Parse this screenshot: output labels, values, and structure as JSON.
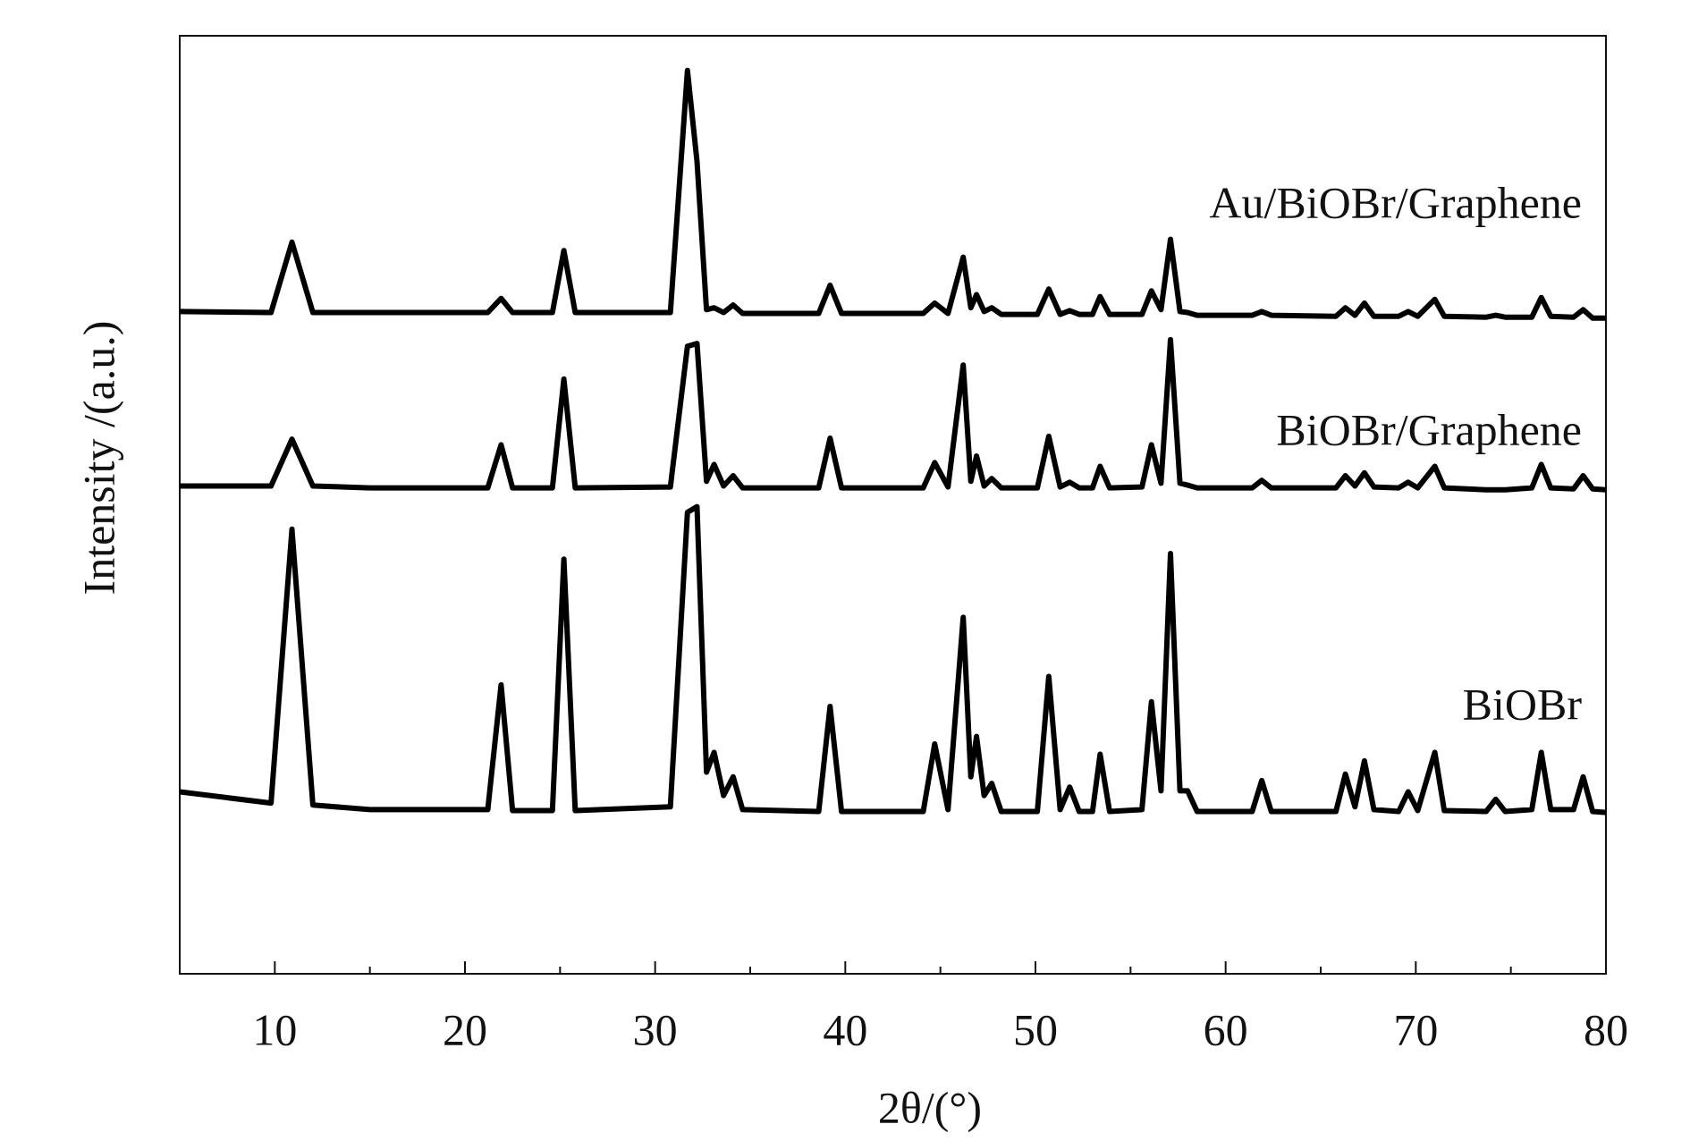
{
  "chart_data": {
    "type": "line",
    "xlabel": "2θ/(°)",
    "ylabel": "Intensity /(a.u.)",
    "xlim": [
      5,
      80
    ],
    "ylim": [
      0,
      100
    ],
    "xticks": [
      10,
      20,
      30,
      40,
      50,
      60,
      70,
      80
    ],
    "xminor": [
      15,
      25,
      35,
      45,
      55,
      65,
      75
    ],
    "x": [
      5,
      9.8,
      10.9,
      12,
      15,
      21.2,
      21.9,
      22.5,
      24.6,
      25.2,
      25.8,
      30.8,
      31.7,
      32.2,
      32.7,
      33.1,
      33.6,
      34.1,
      34.6,
      38.6,
      39.2,
      39.8,
      44.1,
      44.7,
      45.4,
      46.2,
      46.6,
      46.9,
      47.3,
      47.7,
      48.2,
      50.1,
      50.7,
      51.3,
      51.8,
      52.3,
      53.0,
      53.4,
      53.9,
      55.6,
      56.1,
      56.6,
      57.1,
      57.6,
      58.0,
      58.5,
      61.4,
      61.9,
      62.4,
      65.8,
      66.3,
      66.8,
      67.3,
      67.8,
      69.1,
      69.6,
      70.1,
      71.0,
      71.5,
      73.7,
      74.2,
      74.7,
      76.1,
      76.6,
      77.1,
      78.3,
      78.8,
      79.3,
      80
    ],
    "series": [
      {
        "name": "Au/BiOBr/Graphene",
        "color": "#000000",
        "values": [
          70.6,
          70.5,
          78.0,
          70.5,
          70.5,
          70.5,
          72.0,
          70.5,
          70.5,
          77.1,
          70.5,
          70.5,
          96.3,
          86.6,
          70.8,
          71.0,
          70.5,
          71.3,
          70.4,
          70.4,
          73.4,
          70.4,
          70.4,
          71.5,
          70.4,
          76.4,
          71.0,
          72.4,
          70.6,
          71.0,
          70.3,
          70.3,
          73.0,
          70.3,
          70.7,
          70.3,
          70.3,
          72.2,
          70.3,
          70.3,
          72.8,
          70.8,
          78.3,
          70.6,
          70.5,
          70.2,
          70.2,
          70.6,
          70.2,
          70.1,
          71.0,
          70.2,
          71.5,
          70.1,
          70.1,
          70.6,
          70.1,
          71.9,
          70.1,
          70.0,
          70.2,
          70.0,
          70.0,
          72.1,
          70.1,
          70.0,
          70.8,
          69.9,
          69.9
        ]
      },
      {
        "name": "BiOBr/Graphene",
        "color": "#000000",
        "values": [
          52.0,
          52.0,
          57.0,
          52.0,
          51.8,
          51.8,
          56.4,
          51.8,
          51.8,
          63.4,
          51.8,
          51.9,
          66.9,
          67.2,
          52.5,
          54.3,
          52.0,
          53.1,
          51.8,
          51.8,
          57.1,
          51.8,
          51.8,
          54.5,
          51.9,
          64.9,
          52.5,
          55.2,
          52.0,
          52.8,
          51.8,
          51.8,
          57.3,
          51.9,
          52.4,
          51.8,
          51.8,
          54.1,
          51.8,
          51.9,
          56.4,
          52.3,
          67.6,
          52.3,
          52.1,
          51.8,
          51.8,
          52.6,
          51.8,
          51.8,
          53.1,
          52.0,
          53.4,
          51.9,
          51.8,
          52.4,
          51.8,
          54.1,
          51.8,
          51.6,
          51.6,
          51.6,
          51.8,
          54.3,
          51.8,
          51.7,
          53.1,
          51.7,
          51.6
        ]
      },
      {
        "name": "BiOBr",
        "color": "#000000",
        "values": [
          19.4,
          18.2,
          47.4,
          18.0,
          17.5,
          17.5,
          30.8,
          17.4,
          17.4,
          44.2,
          17.4,
          17.8,
          49.2,
          49.8,
          21.5,
          23.6,
          19.0,
          21.0,
          17.5,
          17.3,
          28.5,
          17.3,
          17.3,
          24.5,
          17.5,
          38.0,
          21.0,
          25.3,
          19.0,
          20.3,
          17.3,
          17.3,
          31.7,
          17.5,
          19.9,
          17.3,
          17.3,
          23.4,
          17.3,
          17.5,
          29.0,
          19.5,
          44.8,
          19.5,
          19.5,
          17.3,
          17.3,
          20.6,
          17.3,
          17.3,
          21.3,
          17.8,
          22.7,
          17.5,
          17.3,
          19.4,
          17.4,
          23.6,
          17.4,
          17.3,
          18.6,
          17.3,
          17.5,
          23.6,
          17.5,
          17.5,
          21.0,
          17.3,
          17.2
        ]
      }
    ]
  }
}
